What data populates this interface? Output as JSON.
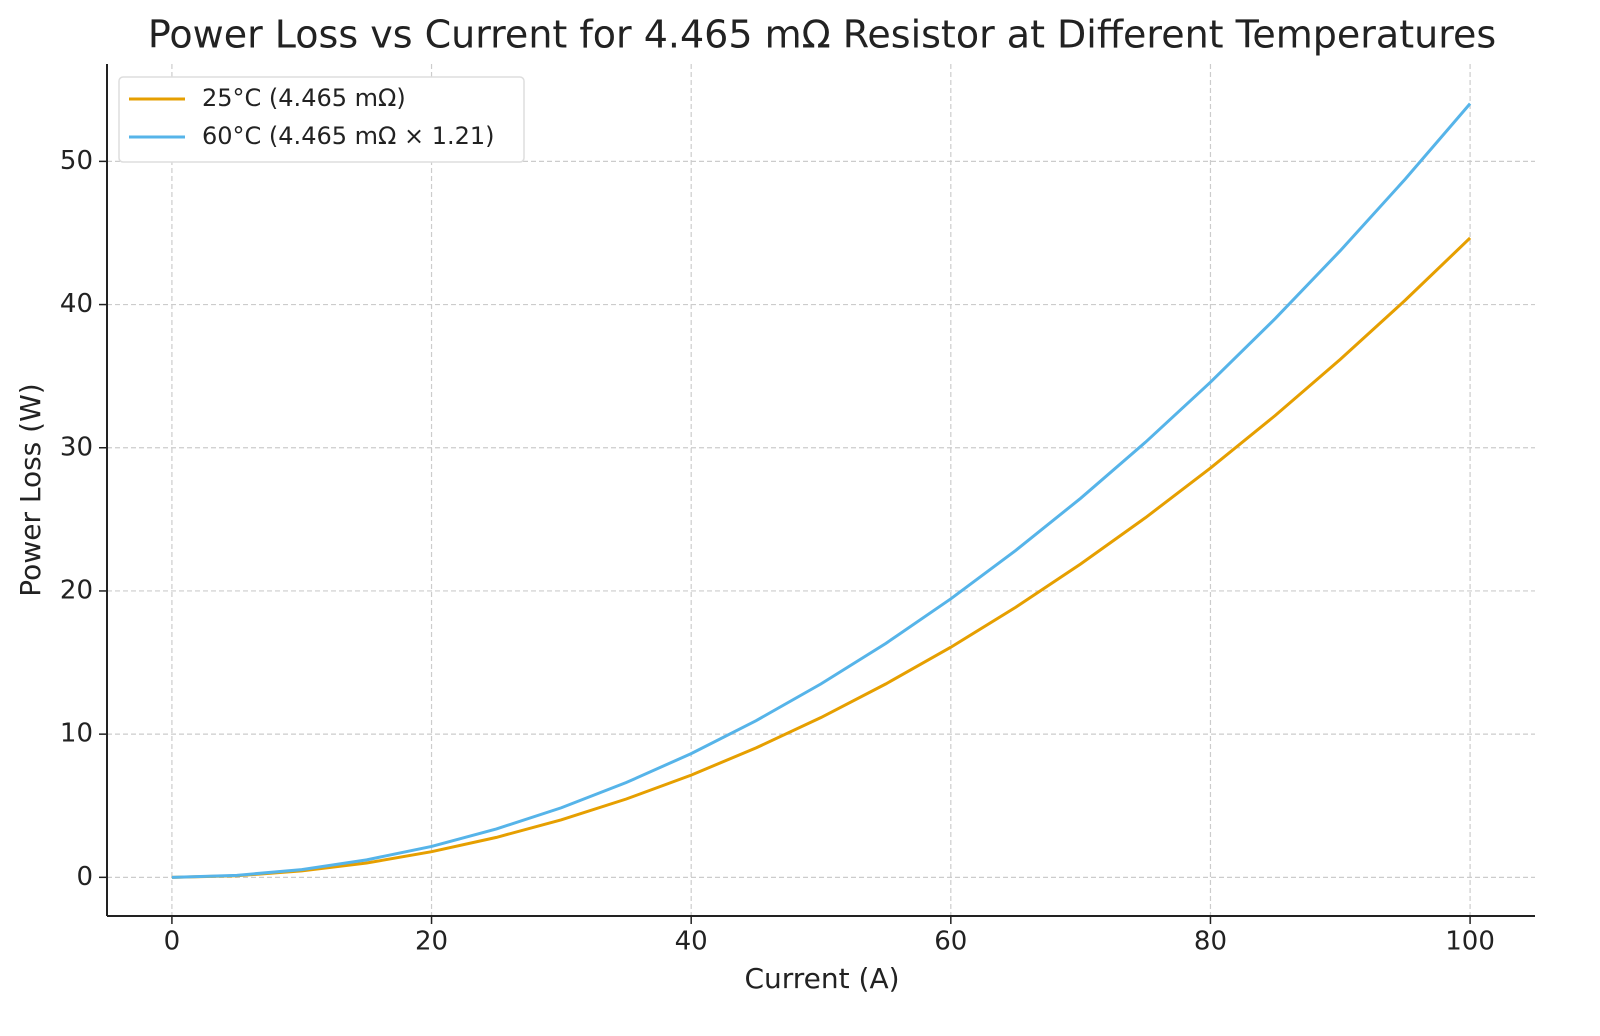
{
  "chart_data": {
    "type": "line",
    "title": "Power Loss vs Current for 4.465 mΩ Resistor at Different Temperatures",
    "x_label": "Current (A)",
    "y_label": "Power Loss (W)",
    "x": [
      0,
      5,
      10,
      15,
      20,
      25,
      30,
      35,
      40,
      45,
      50,
      55,
      60,
      65,
      70,
      75,
      80,
      85,
      90,
      95,
      100
    ],
    "series": [
      {
        "name": "25°C (4.465 mΩ)",
        "color": "#e69f00",
        "values": [
          0,
          0.11,
          0.45,
          1.0,
          1.79,
          2.79,
          4.02,
          5.47,
          7.14,
          9.04,
          11.16,
          13.51,
          16.07,
          18.86,
          21.88,
          25.12,
          28.58,
          32.26,
          36.17,
          40.3,
          44.65
        ]
      },
      {
        "name": "60°C (4.465 mΩ × 1.21)",
        "color": "#56b4e9",
        "values": [
          0,
          0.14,
          0.54,
          1.22,
          2.16,
          3.38,
          4.86,
          6.62,
          8.64,
          10.94,
          13.51,
          16.34,
          19.45,
          22.83,
          26.47,
          30.39,
          34.58,
          39.03,
          43.76,
          48.76,
          54.03
        ]
      }
    ],
    "xlim": [
      -5,
      105
    ],
    "ylim": [
      -2.7,
      56.8
    ],
    "xticks": [
      0,
      20,
      40,
      60,
      80,
      100
    ],
    "yticks": [
      0,
      10,
      20,
      30,
      40,
      50
    ],
    "grid": true,
    "legend": "upper-left"
  }
}
